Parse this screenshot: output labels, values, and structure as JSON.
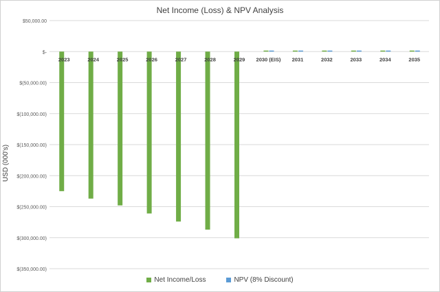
{
  "chart_data": {
    "type": "bar",
    "title": "Net Income (Loss) & NPV Analysis",
    "ylabel": "USD (000's)",
    "xlabel": "",
    "ylim": [
      -350000,
      50000
    ],
    "yticks": [
      50000,
      0,
      -50000,
      -100000,
      -150000,
      -200000,
      -250000,
      -300000,
      -350000
    ],
    "ytick_labels": [
      "$50,000.00",
      "$-",
      "$(50,000.00)",
      "$(100,000.00)",
      "$(150,000.00)",
      "$(200,000.00)",
      "$(250,000.00)",
      "$(300,000.00)",
      "$(350,000.00)"
    ],
    "categories": [
      "2023",
      "2024",
      "2025",
      "2026",
      "2027",
      "2028",
      "2029",
      "2030 (EIS)",
      "2031",
      "2032",
      "2033",
      "2034",
      "2035"
    ],
    "series": [
      {
        "name": "Net Income/Loss",
        "color": "#70ad47",
        "values": [
          -225000,
          -237000,
          -248000,
          -261000,
          -274000,
          -287000,
          -301000,
          700,
          700,
          700,
          700,
          700,
          700
        ]
      },
      {
        "name": "NPV (8% Discount)",
        "color": "#5b9bd5",
        "values": [
          0,
          0,
          0,
          0,
          0,
          0,
          0,
          600,
          600,
          600,
          600,
          600,
          600
        ]
      }
    ],
    "grid": true,
    "legend_position": "bottom"
  }
}
